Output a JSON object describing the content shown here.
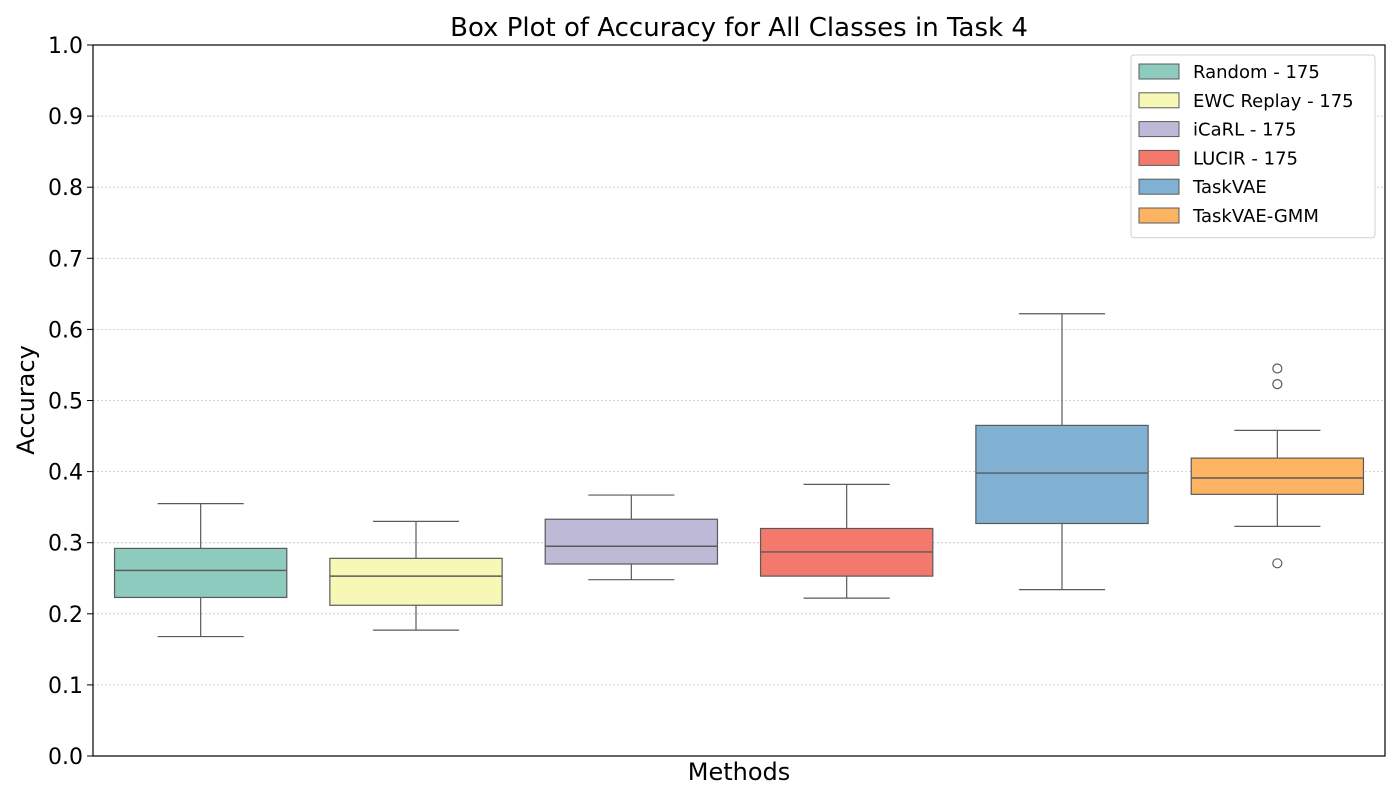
{
  "chart_data": {
    "type": "box",
    "title": "Box Plot of Accuracy for All Classes in Task 4",
    "xlabel": "Methods",
    "ylabel": "Accuracy",
    "ylim": [
      0.0,
      1.0
    ],
    "yticks": [
      "0.0",
      "0.1",
      "0.2",
      "0.3",
      "0.4",
      "0.5",
      "0.6",
      "0.7",
      "0.8",
      "0.9",
      "1.0"
    ],
    "grid": "y-dotted",
    "legend_position": "top-right",
    "series": [
      {
        "name": "Random - 175",
        "color": "#8dcbbe",
        "whisker_low": 0.168,
        "q1": 0.223,
        "median": 0.261,
        "q3": 0.292,
        "whisker_high": 0.355,
        "outliers": []
      },
      {
        "name": "EWC Replay - 175",
        "color": "#f8f8b6",
        "whisker_low": 0.177,
        "q1": 0.212,
        "median": 0.253,
        "q3": 0.278,
        "whisker_high": 0.33,
        "outliers": []
      },
      {
        "name": "iCaRL - 175",
        "color": "#bdb9d7",
        "whisker_low": 0.248,
        "q1": 0.27,
        "median": 0.295,
        "q3": 0.333,
        "whisker_high": 0.367,
        "outliers": []
      },
      {
        "name": "LUCIR - 175",
        "color": "#f3796c",
        "whisker_low": 0.222,
        "q1": 0.253,
        "median": 0.287,
        "q3": 0.32,
        "whisker_high": 0.382,
        "outliers": []
      },
      {
        "name": "TaskVAE",
        "color": "#80b1d3",
        "whisker_low": 0.234,
        "q1": 0.327,
        "median": 0.398,
        "q3": 0.465,
        "whisker_high": 0.622,
        "outliers": []
      },
      {
        "name": "TaskVAE-GMM",
        "color": "#fdb462",
        "whisker_low": 0.323,
        "q1": 0.368,
        "median": 0.391,
        "q3": 0.419,
        "whisker_high": 0.458,
        "outliers": [
          0.271,
          0.523,
          0.545
        ]
      }
    ]
  }
}
